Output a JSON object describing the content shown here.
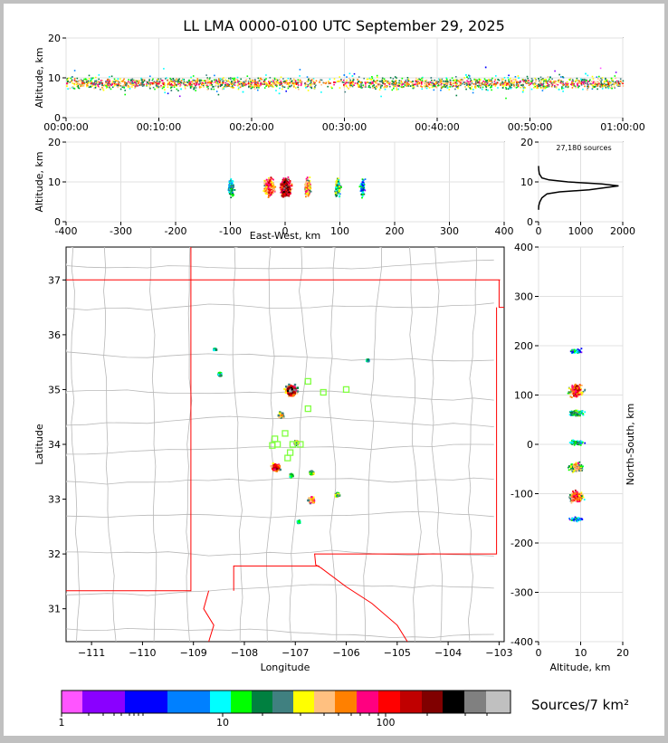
{
  "title": "LL LMA 0000-0100 UTC September 29, 2025",
  "chart_data": [
    {
      "id": "time-altitude",
      "type": "scatter",
      "ylabel": "Altitude, km",
      "xlabel": "",
      "xticks": [
        "00:00:00",
        "00:10:00",
        "00:20:00",
        "00:30:00",
        "00:40:00",
        "00:50:00",
        "01:00:00"
      ],
      "xlim": [
        0,
        60
      ],
      "ylim": [
        0,
        20
      ],
      "yticks": [
        0,
        10,
        20
      ],
      "grid": true,
      "note": "dense band of VHF sources near 7-11 km across the hour"
    },
    {
      "id": "ew-altitude",
      "type": "scatter",
      "xlabel": "East-West, km",
      "ylabel": "Altitude, km",
      "xlim": [
        -400,
        400
      ],
      "xticks": [
        -400,
        -300,
        -200,
        -100,
        0,
        100,
        200,
        300,
        400
      ],
      "ylim": [
        0,
        20
      ],
      "yticks": [
        0,
        10,
        20
      ],
      "clusters_x_km": [
        -100,
        -30,
        0,
        40,
        95,
        140
      ],
      "grid": true
    },
    {
      "id": "altitude-histogram",
      "type": "line",
      "annotation": "27,180 sources",
      "xlim": [
        0,
        2000
      ],
      "xticks": [
        0,
        1000,
        2000
      ],
      "ylim": [
        0,
        20
      ],
      "yticks": [
        0,
        10,
        20
      ],
      "x": [
        0,
        5,
        30,
        80,
        200,
        500,
        1200,
        1900,
        1500,
        700,
        250,
        80,
        20,
        5,
        0
      ],
      "y": [
        3,
        4,
        5,
        6,
        7,
        7.5,
        8,
        9,
        9.5,
        10,
        10.5,
        11,
        12,
        13,
        14
      ]
    },
    {
      "id": "plan-view",
      "type": "scatter",
      "xlabel": "Longitude",
      "ylabel": "Latitude",
      "xlim": [
        -111.5,
        -102.9
      ],
      "ylim": [
        30.4,
        37.6
      ],
      "xticks": [
        -111,
        -110,
        -109,
        -108,
        -107,
        -106,
        -105,
        -104,
        -103
      ],
      "yticks": [
        31,
        32,
        33,
        34,
        35,
        36,
        37
      ],
      "source_clusters": [
        {
          "lon": -107.1,
          "lat": 35.0
        },
        {
          "lon": -107.4,
          "lat": 33.6
        },
        {
          "lon": -106.7,
          "lat": 33.0
        },
        {
          "lon": -107.3,
          "lat": 34.55
        },
        {
          "lon": -107.0,
          "lat": 34.05
        },
        {
          "lon": -106.2,
          "lat": 33.1
        },
        {
          "lon": -108.5,
          "lat": 35.3
        },
        {
          "lon": -108.6,
          "lat": 35.75
        },
        {
          "lon": -105.6,
          "lat": 35.55
        },
        {
          "lon": -106.95,
          "lat": 32.6
        },
        {
          "lon": -106.7,
          "lat": 33.5
        },
        {
          "lon": -107.1,
          "lat": 33.45
        }
      ],
      "stations": [
        {
          "lon": -107.2,
          "lat": 34.2
        },
        {
          "lon": -107.35,
          "lat": 34.0
        },
        {
          "lon": -107.05,
          "lat": 34.0
        },
        {
          "lon": -107.4,
          "lat": 34.1
        },
        {
          "lon": -107.1,
          "lat": 33.85
        },
        {
          "lon": -107.45,
          "lat": 33.98
        },
        {
          "lon": -106.9,
          "lat": 34.0
        },
        {
          "lon": -107.15,
          "lat": 33.75
        },
        {
          "lon": -106.75,
          "lat": 35.15
        },
        {
          "lon": -106.45,
          "lat": 34.95
        },
        {
          "lon": -106.0,
          "lat": 35.0
        },
        {
          "lon": -106.75,
          "lat": 34.65
        }
      ]
    },
    {
      "id": "altitude-ns",
      "type": "scatter",
      "xlabel": "Altitude, km",
      "ylabel": "North-South, km",
      "xlim": [
        0,
        20
      ],
      "xticks": [
        0,
        10,
        20
      ],
      "ylim": [
        -400,
        400
      ],
      "yticks": [
        -400,
        -300,
        -200,
        -100,
        0,
        100,
        200,
        300,
        400
      ],
      "clusters_ns_km": [
        110,
        65,
        5,
        -45,
        -105,
        -150,
        190
      ],
      "grid": true
    }
  ],
  "colorbar": {
    "label": "Sources/7 km²",
    "ticks": [
      "1",
      "10",
      "100"
    ],
    "colors": [
      "#ff55ff",
      "#8a00ff",
      "#0000ff",
      "#0080ff",
      "#00ffff",
      "#00ff00",
      "#008040",
      "#408080",
      "#ffff00",
      "#ffc080",
      "#ff8000",
      "#ff0080",
      "#ff0000",
      "#c00000",
      "#800000",
      "#000000",
      "#808080",
      "#c0c0c0",
      "#ffffff"
    ]
  },
  "colors": {
    "border": "#ff0000",
    "county": "#b0b0b0",
    "station": "#80ff40"
  }
}
